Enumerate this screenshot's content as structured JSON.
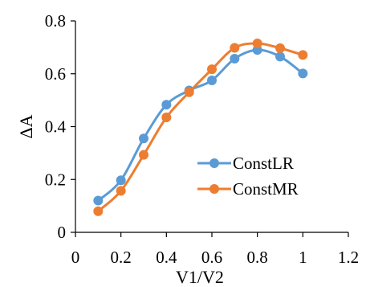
{
  "chart_data": {
    "type": "line",
    "title": "",
    "xlabel": "V1/V2",
    "ylabel": "ΔA",
    "xlim": [
      0,
      1.2
    ],
    "ylim": [
      0,
      0.8
    ],
    "xticks": [
      0,
      0.2,
      0.4,
      0.6,
      0.8,
      1,
      1.2
    ],
    "xtick_labels": [
      "0",
      "0.2",
      "0.4",
      "0.6",
      "0.8",
      "1",
      "1.2"
    ],
    "yticks": [
      0,
      0.2,
      0.4,
      0.6,
      0.8
    ],
    "ytick_labels": [
      "0",
      "0.2",
      "0.4",
      "0.6",
      "0.8"
    ],
    "grid": false,
    "smooth": true,
    "legend_position": "right",
    "x": [
      0.1,
      0.2,
      0.3,
      0.4,
      0.5,
      0.6,
      0.7,
      0.8,
      0.9,
      1.0
    ],
    "series": [
      {
        "name": "ConstLR",
        "color": "#5B9BD5",
        "values": [
          0.12,
          0.197,
          0.355,
          0.483,
          0.537,
          0.575,
          0.657,
          0.69,
          0.665,
          0.601
        ]
      },
      {
        "name": "ConstMR",
        "color": "#ED7D31",
        "values": [
          0.08,
          0.157,
          0.293,
          0.435,
          0.53,
          0.617,
          0.698,
          0.715,
          0.697,
          0.671
        ]
      }
    ]
  }
}
